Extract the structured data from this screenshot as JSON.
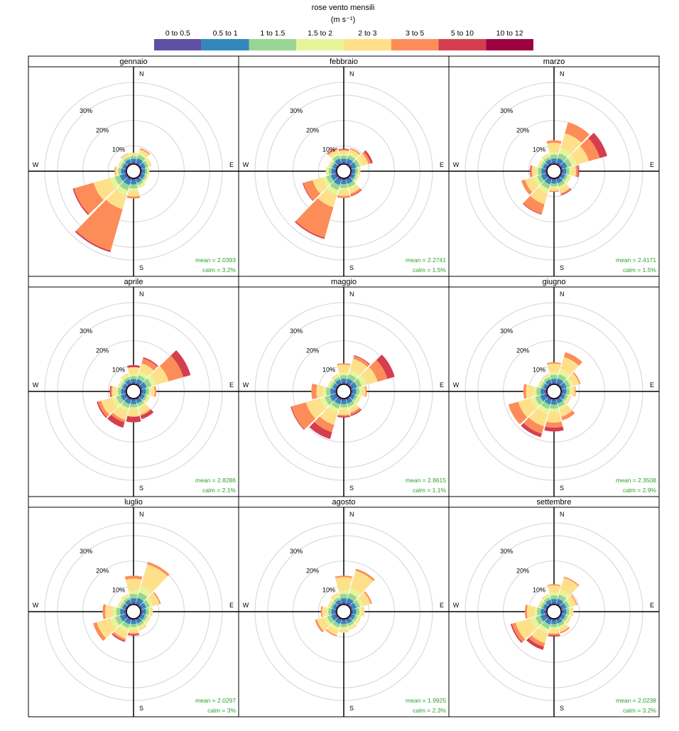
{
  "chart_data": {
    "type": "windrose",
    "title": "rose vento mensili",
    "units": "(m s⁻¹)",
    "legend": {
      "placement": "top",
      "bins": [
        {
          "label": "0 to 0.5",
          "color": "#5E4FA2"
        },
        {
          "label": "0.5 to 1",
          "color": "#3288BD"
        },
        {
          "label": "1 to 1.5",
          "color": "#99D594"
        },
        {
          "label": "1.5 to 2",
          "color": "#E6F598"
        },
        {
          "label": "2 to 3",
          "color": "#FEE08B"
        },
        {
          "label": "3 to 5",
          "color": "#FC8D59"
        },
        {
          "label": "5 to 10",
          "color": "#D53E4F"
        },
        {
          "label": "10 to 12",
          "color": "#9E0142"
        }
      ]
    },
    "radial_axis": {
      "max_percent": 35,
      "grid_percent": [
        10,
        20,
        30
      ],
      "grid_labels": [
        "10%",
        "20%",
        "30%"
      ]
    },
    "compass": {
      "N": "N",
      "E": "E",
      "S": "S",
      "W": "W"
    },
    "directions_deg": [
      0,
      30,
      60,
      90,
      120,
      150,
      180,
      210,
      240,
      270,
      300,
      330
    ],
    "panels": [
      {
        "month": "gennaio",
        "mean_text": "mean = 2.0393",
        "calm_text": "calm = 3.2%",
        "freq": [
          [
            0.9,
            1.2,
            1.1,
            0.6,
            0.7,
            0,
            0,
            0
          ],
          [
            1.0,
            1.5,
            1.5,
            0.9,
            1.3,
            0.5,
            0,
            0
          ],
          [
            0.9,
            1.3,
            1.1,
            0.7,
            0.7,
            0,
            0,
            0
          ],
          [
            0.8,
            1.0,
            0.8,
            0.5,
            0.4,
            0,
            0,
            0
          ],
          [
            0.8,
            1.0,
            0.8,
            0.5,
            0.3,
            0,
            0,
            0
          ],
          [
            0.8,
            1.2,
            1.0,
            0.6,
            0.5,
            0,
            0,
            0
          ],
          [
            0.9,
            1.5,
            1.6,
            1.2,
            2.0,
            0.8,
            0,
            0
          ],
          [
            1.1,
            1.8,
            2.2,
            2.2,
            5.5,
            17.0,
            0.6,
            0
          ],
          [
            1.1,
            1.8,
            2.0,
            2.2,
            6.5,
            8.0,
            0.5,
            0
          ],
          [
            0.9,
            1.2,
            1.0,
            0.7,
            0.6,
            0.3,
            0,
            0
          ],
          [
            0.8,
            1.0,
            0.8,
            0.6,
            0.4,
            0,
            0,
            0
          ],
          [
            0.9,
            1.2,
            1.0,
            0.7,
            0.6,
            0.2,
            0,
            0
          ]
        ]
      },
      {
        "month": "febbraio",
        "mean_text": "mean = 2.2741",
        "calm_text": "calm = 1.5%",
        "freq": [
          [
            0.9,
            1.2,
            1.2,
            0.8,
            1.2,
            0.5,
            0.3,
            0
          ],
          [
            1.0,
            1.4,
            1.4,
            1.0,
            1.4,
            0.5,
            0,
            0
          ],
          [
            1.0,
            1.4,
            1.4,
            1.1,
            2.4,
            1.0,
            0.8,
            0
          ],
          [
            0.8,
            1.0,
            0.9,
            0.6,
            0.5,
            0,
            0,
            0
          ],
          [
            0.8,
            1.0,
            0.8,
            0.5,
            0.4,
            0,
            0,
            0
          ],
          [
            1.0,
            1.4,
            1.4,
            1.0,
            1.6,
            0.8,
            0.3,
            0
          ],
          [
            0.9,
            1.4,
            1.5,
            1.0,
            2.2,
            0.8,
            0,
            0
          ],
          [
            1.1,
            1.8,
            2.1,
            2.0,
            5.0,
            12.5,
            0.5,
            0
          ],
          [
            1.0,
            1.6,
            1.8,
            1.6,
            4.0,
            3.8,
            0.3,
            0
          ],
          [
            0.9,
            1.2,
            1.0,
            0.7,
            0.5,
            0,
            0,
            0
          ],
          [
            0.8,
            1.0,
            0.8,
            0.6,
            0.4,
            0,
            0,
            0
          ],
          [
            1.0,
            1.4,
            1.3,
            1.0,
            1.3,
            0.5,
            0.3,
            0
          ]
        ]
      },
      {
        "month": "marzo",
        "mean_text": "mean = 2.4171",
        "calm_text": "calm = 1.5%",
        "freq": [
          [
            0.9,
            1.3,
            1.5,
            1.2,
            3.5,
            1.0,
            0,
            0
          ],
          [
            1.0,
            1.6,
            2.0,
            2.2,
            6.0,
            4.5,
            0,
            0
          ],
          [
            1.0,
            1.6,
            1.9,
            2.0,
            5.0,
            4.5,
            3.0,
            0
          ],
          [
            0.9,
            1.2,
            1.2,
            1.0,
            1.6,
            0.8,
            0.4,
            0
          ],
          [
            0.8,
            1.1,
            1.0,
            0.7,
            0.6,
            0,
            0,
            0
          ],
          [
            0.9,
            1.3,
            1.3,
            1.0,
            1.8,
            0.5,
            0.3,
            0
          ],
          [
            0.9,
            1.2,
            1.1,
            0.8,
            1.0,
            0.4,
            0,
            0
          ],
          [
            1.0,
            1.6,
            1.8,
            1.8,
            4.5,
            4.0,
            0.3,
            0
          ],
          [
            1.0,
            1.5,
            1.6,
            1.5,
            3.5,
            1.5,
            0,
            0
          ],
          [
            0.9,
            1.3,
            1.3,
            1.0,
            1.4,
            0.5,
            0.3,
            0
          ],
          [
            0.8,
            1.0,
            0.9,
            0.6,
            0.5,
            0,
            0,
            0
          ],
          [
            0.9,
            1.2,
            1.0,
            0.7,
            0.6,
            0,
            0,
            0
          ]
        ]
      },
      {
        "month": "aprile",
        "mean_text": "mean = 2.8286",
        "calm_text": "calm = 2.1%",
        "freq": [
          [
            0.9,
            1.2,
            1.1,
            1.0,
            2.6,
            0,
            0.8,
            0
          ],
          [
            0.9,
            1.4,
            1.6,
            1.6,
            3.2,
            2.0,
            0.5,
            0
          ],
          [
            1.0,
            1.6,
            2.0,
            2.0,
            5.0,
            6.0,
            3.0,
            0
          ],
          [
            0.9,
            1.2,
            1.2,
            0.9,
            1.4,
            0.6,
            0,
            0
          ],
          [
            0.8,
            1.1,
            0.9,
            0.6,
            0.6,
            0,
            0,
            0
          ],
          [
            0.9,
            1.2,
            1.2,
            0.9,
            2.5,
            0.5,
            1.4,
            0
          ],
          [
            0.9,
            1.3,
            1.3,
            1.0,
            2.7,
            0,
            2.2,
            0
          ],
          [
            1.0,
            1.4,
            1.6,
            1.4,
            3.5,
            1.0,
            2.2,
            0
          ],
          [
            1.0,
            1.5,
            1.8,
            1.7,
            4.5,
            1.3,
            0.5,
            0
          ],
          [
            0.9,
            1.2,
            1.2,
            0.9,
            1.5,
            0.5,
            0.4,
            0
          ],
          [
            0.8,
            1.0,
            0.8,
            0.6,
            0.4,
            0,
            0,
            0
          ],
          [
            0.9,
            1.2,
            1.0,
            0.8,
            0.7,
            0,
            0,
            0
          ]
        ]
      },
      {
        "month": "maggio",
        "mean_text": "mean = 2.8615",
        "calm_text": "calm = 1.1%",
        "freq": [
          [
            0.9,
            1.3,
            1.4,
            1.2,
            3.0,
            0.5,
            0,
            0
          ],
          [
            1.0,
            1.5,
            1.8,
            1.8,
            4.5,
            1.2,
            0.3,
            0
          ],
          [
            1.0,
            1.6,
            2.0,
            2.0,
            4.5,
            4.0,
            3.0,
            0
          ],
          [
            0.9,
            1.2,
            1.2,
            1.0,
            1.5,
            0.5,
            0,
            0
          ],
          [
            0.8,
            1.1,
            1.0,
            0.7,
            0.7,
            0,
            0,
            0
          ],
          [
            0.9,
            1.3,
            1.3,
            1.0,
            1.5,
            0.8,
            0.5,
            0
          ],
          [
            0.9,
            1.3,
            1.3,
            1.0,
            2.0,
            0.5,
            0.5,
            0
          ],
          [
            1.0,
            1.5,
            1.8,
            1.8,
            4.8,
            3.0,
            2.8,
            0
          ],
          [
            1.1,
            1.8,
            2.1,
            2.2,
            5.5,
            6.0,
            0.3,
            0
          ],
          [
            1.0,
            1.5,
            1.6,
            1.4,
            2.5,
            2.0,
            0,
            0
          ],
          [
            0.8,
            1.0,
            0.9,
            0.6,
            0.5,
            0,
            0,
            0
          ],
          [
            0.9,
            1.2,
            1.0,
            0.7,
            0.6,
            0,
            0,
            0
          ]
        ]
      },
      {
        "month": "giugno",
        "mean_text": "mean = 2.3508",
        "calm_text": "calm = 2.9%",
        "freq": [
          [
            0.9,
            1.3,
            1.5,
            1.3,
            3.2,
            0.5,
            0,
            0
          ],
          [
            1.0,
            1.5,
            1.8,
            2.0,
            5.0,
            2.0,
            0,
            0
          ],
          [
            1.0,
            1.4,
            1.5,
            1.2,
            2.5,
            0.5,
            0,
            0
          ],
          [
            0.9,
            1.2,
            1.2,
            0.9,
            1.3,
            0.3,
            0,
            0
          ],
          [
            0.8,
            1.1,
            1.0,
            0.7,
            0.7,
            0,
            0,
            0
          ],
          [
            0.9,
            1.3,
            1.4,
            1.2,
            2.8,
            1.5,
            0,
            0
          ],
          [
            1.0,
            1.4,
            1.6,
            1.5,
            4.0,
            2.0,
            1.5,
            0
          ],
          [
            1.0,
            1.6,
            1.9,
            2.0,
            5.0,
            3.0,
            1.5,
            0
          ],
          [
            1.1,
            1.8,
            2.0,
            2.0,
            5.0,
            4.0,
            0,
            0
          ],
          [
            1.0,
            1.5,
            1.6,
            1.4,
            2.8,
            1.0,
            0,
            0
          ],
          [
            0.8,
            1.0,
            0.9,
            0.6,
            0.5,
            0,
            0,
            0
          ],
          [
            0.9,
            1.2,
            1.0,
            0.7,
            0.6,
            0,
            0,
            0
          ]
        ]
      },
      {
        "month": "luglio",
        "mean_text": "mean = 2.0297",
        "calm_text": "calm = 3%",
        "freq": [
          [
            1.0,
            1.5,
            1.7,
            1.5,
            4.5,
            1.2,
            0,
            0
          ],
          [
            1.1,
            1.8,
            2.2,
            2.5,
            9.0,
            1.0,
            0,
            0
          ],
          [
            1.0,
            1.4,
            1.5,
            1.2,
            2.8,
            0.5,
            0,
            0
          ],
          [
            0.9,
            1.2,
            1.1,
            0.8,
            0.8,
            0,
            0,
            0
          ],
          [
            0.8,
            1.1,
            1.0,
            0.7,
            0.6,
            0,
            0,
            0
          ],
          [
            0.9,
            1.2,
            1.1,
            0.8,
            1.0,
            0,
            0,
            0
          ],
          [
            0.9,
            1.2,
            1.2,
            0.9,
            1.5,
            0.5,
            0.5,
            0
          ],
          [
            1.0,
            1.4,
            1.6,
            1.5,
            2.8,
            0.8,
            0.5,
            0
          ],
          [
            1.1,
            1.7,
            2.0,
            2.0,
            5.5,
            1.5,
            0,
            0
          ],
          [
            1.0,
            1.5,
            1.5,
            1.4,
            3.0,
            1.0,
            0,
            0
          ],
          [
            0.8,
            1.0,
            0.9,
            0.6,
            0.5,
            0,
            0,
            0
          ],
          [
            0.9,
            1.2,
            1.0,
            0.7,
            0.6,
            0,
            0,
            0
          ]
        ]
      },
      {
        "month": "agosto",
        "mean_text": "mean = 1.9925",
        "calm_text": "calm = 2.3%",
        "freq": [
          [
            1.0,
            1.5,
            1.7,
            1.6,
            5.0,
            0.6,
            0,
            0
          ],
          [
            1.1,
            1.7,
            2.0,
            2.2,
            7.0,
            0.8,
            0,
            0
          ],
          [
            1.0,
            1.4,
            1.5,
            1.3,
            3.0,
            0.6,
            0,
            0
          ],
          [
            0.9,
            1.2,
            1.2,
            0.9,
            1.2,
            0,
            0,
            0
          ],
          [
            0.8,
            1.1,
            1.0,
            0.7,
            0.7,
            0,
            0,
            0
          ],
          [
            0.9,
            1.2,
            1.1,
            0.8,
            0.8,
            0,
            0,
            0
          ],
          [
            0.9,
            1.2,
            1.2,
            0.9,
            1.3,
            0,
            0,
            0
          ],
          [
            1.0,
            1.3,
            1.4,
            1.2,
            2.0,
            0.5,
            0,
            0
          ],
          [
            1.0,
            1.4,
            1.6,
            1.4,
            2.8,
            0.8,
            0,
            0
          ],
          [
            0.9,
            1.2,
            1.2,
            1.0,
            1.5,
            0.5,
            0,
            0
          ],
          [
            0.8,
            1.0,
            0.9,
            0.6,
            0.5,
            0,
            0,
            0
          ],
          [
            0.9,
            1.2,
            1.0,
            0.8,
            1.0,
            0,
            0,
            0
          ]
        ]
      },
      {
        "month": "settembre",
        "mean_text": "mean = 2.0238",
        "calm_text": "calm = 3.2%",
        "freq": [
          [
            0.9,
            1.3,
            1.4,
            1.2,
            2.8,
            0.4,
            0,
            0
          ],
          [
            1.0,
            1.5,
            1.8,
            1.8,
            5.0,
            0.5,
            0,
            0
          ],
          [
            1.0,
            1.3,
            1.3,
            1.0,
            1.8,
            0.4,
            0,
            0
          ],
          [
            0.9,
            1.2,
            1.1,
            0.8,
            0.9,
            0,
            0,
            0
          ],
          [
            0.8,
            1.1,
            1.0,
            0.7,
            0.7,
            0,
            0,
            0
          ],
          [
            0.9,
            1.2,
            1.2,
            1.0,
            1.3,
            0.6,
            0,
            0
          ],
          [
            0.9,
            1.2,
            1.2,
            1.0,
            1.6,
            0.6,
            0.5,
            0
          ],
          [
            1.0,
            1.5,
            1.8,
            1.8,
            4.0,
            1.5,
            1.3,
            0
          ],
          [
            1.1,
            1.7,
            2.0,
            2.2,
            6.0,
            1.5,
            0.5,
            0
          ],
          [
            1.0,
            1.4,
            1.5,
            1.2,
            2.8,
            0.8,
            0,
            0
          ],
          [
            0.8,
            1.0,
            0.9,
            0.6,
            0.5,
            0,
            0,
            0
          ],
          [
            0.9,
            1.2,
            1.0,
            0.7,
            0.6,
            0,
            0,
            0
          ]
        ]
      }
    ]
  }
}
